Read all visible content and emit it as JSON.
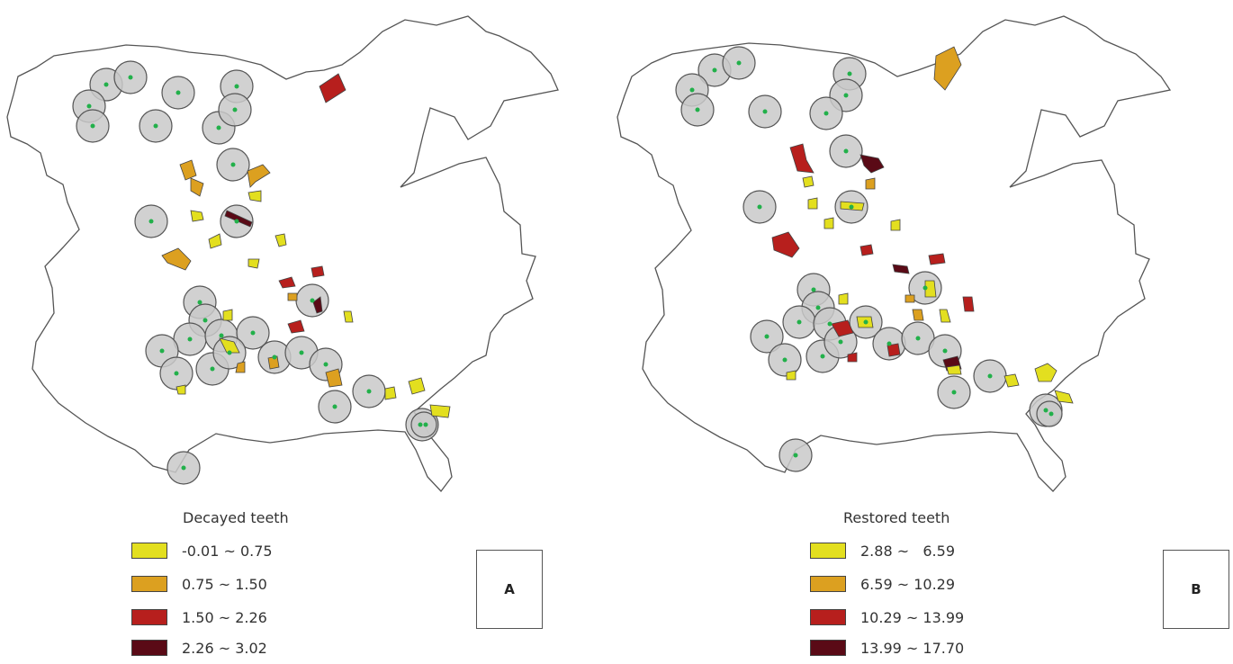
{
  "panels": [
    {
      "id": "A",
      "legend_title": "Decayed teeth",
      "classes": [
        {
          "label": "-0.01 ~ 0.75",
          "color": "#e3df1f"
        },
        {
          "label": "0.75 ~ 1.50",
          "color": "#dca020"
        },
        {
          "label": "1.50 ~ 2.26",
          "color": "#b71f1d"
        },
        {
          "label": "2.26 ~ 3.02",
          "color": "#5a0a16"
        }
      ]
    },
    {
      "id": "B",
      "legend_title": "Restored teeth",
      "classes": [
        {
          "label": "2.88 ~   6.59",
          "color": "#e3df1f"
        },
        {
          "label": "6.59 ~ 10.29",
          "color": "#dca020"
        },
        {
          "label": "10.29 ~ 13.99",
          "color": "#b71f1d"
        },
        {
          "label": "13.99 ~ 17.70",
          "color": "#5a0a16"
        }
      ]
    }
  ],
  "symbols": {
    "buffer_fill": "#c9c9c9",
    "buffer_stroke": "#555555",
    "point_color": "#22b04a",
    "boundary_stroke": "#555555"
  }
}
